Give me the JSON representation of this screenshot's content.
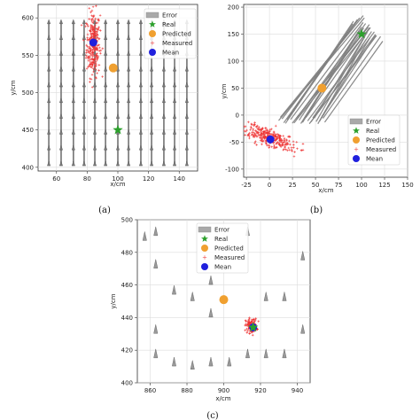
{
  "chart_data": [
    {
      "type": "scatter",
      "panel": "a",
      "panel_label": "(a)",
      "xlabel": "x/cm",
      "ylabel": "y/cm",
      "xlim": [
        48,
        152
      ],
      "ylim": [
        395,
        618
      ],
      "xticks": [
        60,
        80,
        100,
        120,
        140
      ],
      "yticks": [
        400,
        450,
        500,
        550,
        600
      ],
      "grid": true,
      "legend_placement": "top-right",
      "legend": [
        "Error",
        "Real",
        "Predicted",
        "Measured",
        "Mean"
      ],
      "colors": {
        "error": "#a9a9a9",
        "real": "#2ca02c",
        "predicted": "#f0a030",
        "measured": "#ee3333",
        "mean": "#2020dd"
      },
      "real": [
        [
          100,
          450
        ]
      ],
      "predicted": [
        [
          97,
          533
        ]
      ],
      "mean": [
        [
          84,
          567
        ]
      ],
      "measured_cluster": {
        "cx": 84,
        "cy": 565,
        "sx": 2.2,
        "sy": 22,
        "count": 260
      },
      "error_rods": {
        "x": [
          55,
          63,
          71,
          78,
          85,
          92,
          100,
          107,
          115,
          122,
          130,
          137,
          145
        ],
        "y_from": 405,
        "y_to": 595
      }
    },
    {
      "type": "scatter",
      "panel": "b",
      "panel_label": "(b)",
      "xlabel": "x/cm",
      "ylabel": "y/cm",
      "xlim": [
        -28,
        150
      ],
      "ylim": [
        -115,
        205
      ],
      "xticks": [
        -25,
        0,
        25,
        50,
        75,
        100,
        125,
        150
      ],
      "yticks": [
        -100,
        -50,
        0,
        50,
        100,
        150,
        200
      ],
      "grid": true,
      "legend_placement": "lower-right",
      "legend": [
        "Error",
        "Real",
        "Predicted",
        "Measured",
        "Mean"
      ],
      "colors": {
        "error": "#a9a9a9",
        "real": "#2ca02c",
        "predicted": "#f0a030",
        "measured": "#ee3333",
        "mean": "#2020dd"
      },
      "real": [
        [
          100,
          150
        ]
      ],
      "predicted": [
        [
          57,
          50
        ]
      ],
      "mean": [
        [
          1,
          -45
        ]
      ],
      "measured_cluster": {
        "cx": 0,
        "cy": -42,
        "sx": 11,
        "sy": 18,
        "count": 300
      },
      "error_lines": {
        "x0_from": 10,
        "x0_to": 60,
        "y0": -10,
        "dx": 85,
        "dy": 190,
        "count": 28
      }
    },
    {
      "type": "scatter",
      "panel": "c",
      "panel_label": "(c)",
      "xlabel": "x/cm",
      "ylabel": "y/cm",
      "xlim": [
        853,
        947
      ],
      "ylim": [
        400,
        500
      ],
      "xticks": [
        860,
        880,
        900,
        920,
        940
      ],
      "yticks": [
        400,
        420,
        440,
        460,
        480,
        500
      ],
      "grid": true,
      "legend_placement": "top-center",
      "legend": [
        "Error",
        "Real",
        "Predicted",
        "Measured",
        "Mean"
      ],
      "colors": {
        "error": "#a9a9a9",
        "real": "#2ca02c",
        "predicted": "#f0a030",
        "measured": "#ee3333",
        "mean": "#2020dd"
      },
      "real": [
        [
          916,
          434
        ]
      ],
      "predicted": [
        [
          900,
          451
        ]
      ],
      "mean": [
        [
          916,
          434
        ]
      ],
      "measured_cluster": {
        "cx": 915,
        "cy": 435,
        "sx": 1.5,
        "sy": 2.2,
        "count": 120
      },
      "error_markers": [
        [
          857,
          490
        ],
        [
          863,
          493
        ],
        [
          863,
          473
        ],
        [
          873,
          457
        ],
        [
          863,
          433
        ],
        [
          863,
          418
        ],
        [
          873,
          413
        ],
        [
          883,
          453
        ],
        [
          893,
          463
        ],
        [
          893,
          443
        ],
        [
          893,
          413
        ],
        [
          883,
          411
        ],
        [
          903,
          413
        ],
        [
          913,
          493
        ],
        [
          923,
          453
        ],
        [
          933,
          453
        ],
        [
          943,
          478
        ],
        [
          943,
          433
        ],
        [
          933,
          418
        ],
        [
          913,
          418
        ],
        [
          923,
          418
        ]
      ]
    }
  ]
}
